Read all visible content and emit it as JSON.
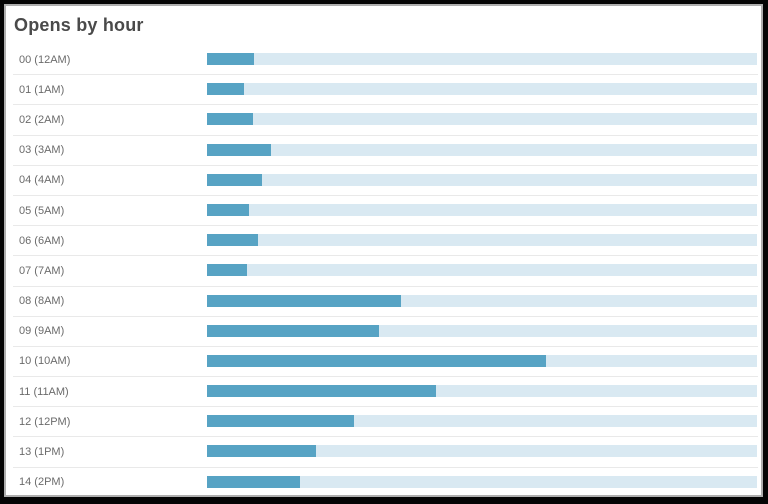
{
  "frame": {
    "border_color": "#000000",
    "card_border_color": "#aeaeae",
    "card_background": "#ffffff"
  },
  "header": {
    "title": "Opens by hour"
  },
  "chart_data": {
    "type": "bar",
    "orientation": "horizontal",
    "title": "Opens by hour",
    "categories": [
      "00 (12AM)",
      "01 (1AM)",
      "02 (2AM)",
      "03 (3AM)",
      "04 (4AM)",
      "05 (5AM)",
      "06 (6AM)",
      "07 (7AM)",
      "08 (8AM)",
      "09 (9AM)",
      "10 (10AM)",
      "11 (11AM)",
      "12 (12PM)",
      "13 (1PM)",
      "14 (2PM)"
    ],
    "values_pct_of_track": [
      8.6,
      6.7,
      8.4,
      11.6,
      10.0,
      7.7,
      9.3,
      7.3,
      35.3,
      31.3,
      61.7,
      41.7,
      26.8,
      19.9,
      16.9
    ],
    "bar_color": "#57a3c4",
    "track_color": "#d9e9f2",
    "row_divider_color": "#e9e9e9",
    "label_color": "#6b6b6b",
    "value_axis_visible": false,
    "grid": false,
    "legend_visible": false
  }
}
